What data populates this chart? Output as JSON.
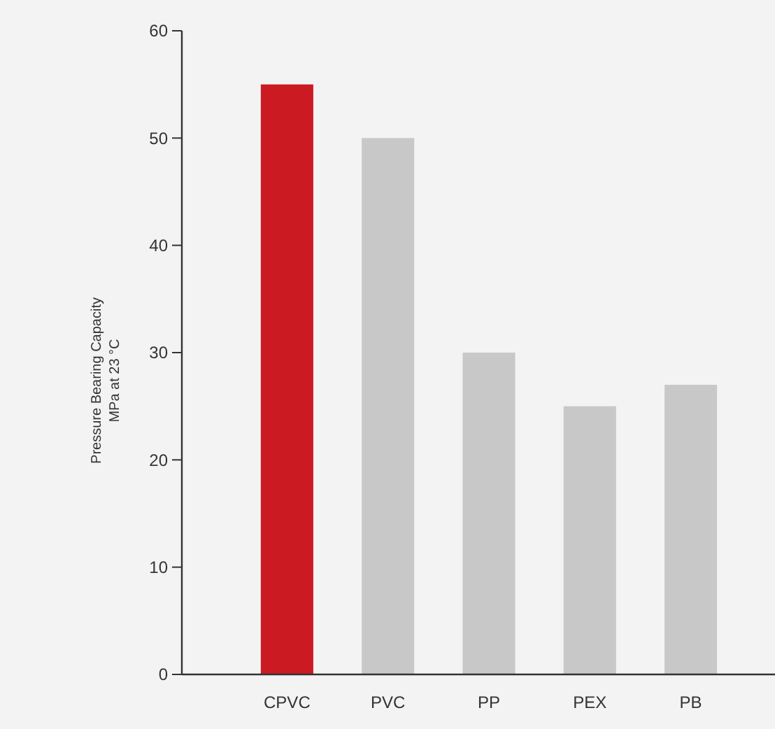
{
  "chart_data": {
    "type": "bar",
    "ylabel": "Pressure Bearing Capacity\nMPa at 23 °C",
    "categories": [
      "CPVC",
      "PVC",
      "PP",
      "PEX",
      "PB"
    ],
    "values": [
      55,
      50,
      30,
      25,
      27
    ],
    "colors": [
      "#cc1a22",
      "#c8c8c8",
      "#c8c8c8",
      "#c8c8c8",
      "#c8c8c8"
    ],
    "ylim": [
      0,
      60
    ],
    "yticks": [
      0,
      10,
      20,
      30,
      40,
      50,
      60
    ],
    "grid": false
  }
}
